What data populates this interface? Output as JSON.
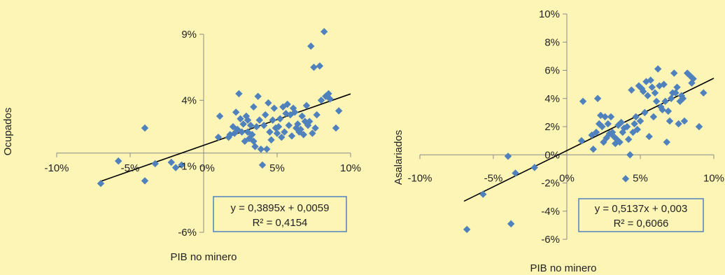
{
  "chart_data": [
    {
      "type": "scatter",
      "xlabel": "PIB no minero",
      "ylabel": "Ocupados",
      "xlim": [
        -0.1,
        0.1
      ],
      "ylim": [
        -0.06,
        0.09
      ],
      "x_ticks": [
        "-10%",
        "-5%",
        "0%",
        "5%",
        "10%"
      ],
      "y_ticks": [
        "-6%",
        "-1%",
        "4%",
        "9%"
      ],
      "y_tick_values": [
        -0.06,
        -0.01,
        0.04,
        0.09
      ],
      "marker_color": "#4f81bd",
      "trendline": {
        "slope": 0.3895,
        "intercept": 0.0059,
        "x_range": [
          -0.07,
          0.1
        ],
        "equation": "y = 0,3895x + 0,0059",
        "r2": "R² = 0,4154"
      },
      "points": [
        [
          -0.07,
          -0.023
        ],
        [
          -0.058,
          -0.006
        ],
        [
          -0.04,
          -0.021
        ],
        [
          -0.04,
          0.019
        ],
        [
          -0.033,
          -0.008
        ],
        [
          -0.022,
          -0.007
        ],
        [
          -0.019,
          -0.011
        ],
        [
          -0.015,
          -0.009
        ],
        [
          0.01,
          0.012
        ],
        [
          0.011,
          0.028
        ],
        [
          0.017,
          0.012
        ],
        [
          0.018,
          0.014
        ],
        [
          0.02,
          0.02
        ],
        [
          0.021,
          0.015
        ],
        [
          0.022,
          0.031
        ],
        [
          0.023,
          0.018
        ],
        [
          0.024,
          0.045
        ],
        [
          0.025,
          0.026
        ],
        [
          0.026,
          0.016
        ],
        [
          0.027,
          0.022
        ],
        [
          0.028,
          0.009
        ],
        [
          0.029,
          0.028
        ],
        [
          0.03,
          0.025
        ],
        [
          0.03,
          0.016
        ],
        [
          0.031,
          0.011
        ],
        [
          0.032,
          0.021
        ],
        [
          0.033,
          0.014
        ],
        [
          0.034,
          0.009
        ],
        [
          0.034,
          0.035
        ],
        [
          0.035,
          0.005
        ],
        [
          0.036,
          0.02
        ],
        [
          0.037,
          0.043
        ],
        [
          0.038,
          0.025
        ],
        [
          0.039,
          0.003
        ],
        [
          0.04,
          -0.009
        ],
        [
          0.041,
          0.021
        ],
        [
          0.042,
          0.029
        ],
        [
          0.043,
          0.003
        ],
        [
          0.044,
          0.038
        ],
        [
          0.045,
          0.016
        ],
        [
          0.046,
          0.01
        ],
        [
          0.047,
          0.025
        ],
        [
          0.048,
          0.034
        ],
        [
          0.049,
          0.019
        ],
        [
          0.05,
          0.015
        ],
        [
          0.051,
          0.02
        ],
        [
          0.052,
          0.026
        ],
        [
          0.053,
          0.012
        ],
        [
          0.054,
          0.035
        ],
        [
          0.055,
          0.016
        ],
        [
          0.056,
          0.03
        ],
        [
          0.057,
          0.037
        ],
        [
          0.058,
          0.021
        ],
        [
          0.059,
          0.029
        ],
        [
          0.06,
          0.013
        ],
        [
          0.061,
          0.034
        ],
        [
          0.062,
          0.031
        ],
        [
          0.063,
          0.019
        ],
        [
          0.064,
          0.022
        ],
        [
          0.065,
          0.016
        ],
        [
          0.066,
          0.018
        ],
        [
          0.067,
          0.028
        ],
        [
          0.068,
          0.014
        ],
        [
          0.069,
          0.024
        ],
        [
          0.07,
          0.036
        ],
        [
          0.071,
          0.021
        ],
        [
          0.072,
          0.024
        ],
        [
          0.073,
          0.081
        ],
        [
          0.074,
          0.015
        ],
        [
          0.075,
          0.065
        ],
        [
          0.076,
          0.019
        ],
        [
          0.077,
          0.029
        ],
        [
          0.079,
          0.066
        ],
        [
          0.08,
          0.04
        ],
        [
          0.082,
          0.092
        ],
        [
          0.083,
          0.043
        ],
        [
          0.085,
          0.045
        ],
        [
          0.086,
          0.041
        ],
        [
          0.09,
          0.019
        ],
        [
          0.092,
          0.032
        ]
      ]
    },
    {
      "type": "scatter",
      "xlabel": "PIB no minero",
      "ylabel": "Asalariados",
      "xlim": [
        -0.1,
        0.1
      ],
      "ylim": [
        -0.06,
        0.1
      ],
      "x_ticks": [
        "-10%",
        "-5%",
        "0%",
        "5%",
        "10%"
      ],
      "y_ticks": [
        "-6%",
        "-4%",
        "-2%",
        "0%",
        "2%",
        "4%",
        "6%",
        "8%",
        "10%"
      ],
      "y_tick_values": [
        -0.06,
        -0.04,
        -0.02,
        0.0,
        0.02,
        0.04,
        0.06,
        0.08,
        0.1
      ],
      "marker_color": "#4f81bd",
      "trendline": {
        "slope": 0.5137,
        "intercept": 0.003,
        "x_range": [
          -0.07,
          0.1
        ],
        "equation": "y = 0,5137x + 0,003",
        "r2": "R² = 0,6066"
      },
      "points": [
        [
          -0.068,
          -0.053
        ],
        [
          -0.057,
          -0.028
        ],
        [
          -0.04,
          -0.001
        ],
        [
          -0.038,
          -0.049
        ],
        [
          -0.035,
          -0.013
        ],
        [
          -0.022,
          -0.009
        ],
        [
          0.01,
          0.01
        ],
        [
          0.011,
          0.038
        ],
        [
          0.017,
          0.014
        ],
        [
          0.018,
          0.004
        ],
        [
          0.02,
          0.016
        ],
        [
          0.021,
          0.04
        ],
        [
          0.022,
          0.022
        ],
        [
          0.023,
          0.028
        ],
        [
          0.024,
          0.02
        ],
        [
          0.025,
          0.009
        ],
        [
          0.026,
          0.027
        ],
        [
          0.027,
          0.012
        ],
        [
          0.028,
          0.022
        ],
        [
          0.029,
          0.015
        ],
        [
          0.03,
          0.027
        ],
        [
          0.031,
          0.016
        ],
        [
          0.032,
          0.013
        ],
        [
          0.033,
          0.008
        ],
        [
          0.034,
          0.011
        ],
        [
          0.035,
          0.021
        ],
        [
          0.036,
          0.009
        ],
        [
          0.037,
          0.023
        ],
        [
          0.038,
          0.016
        ],
        [
          0.039,
          0.019
        ],
        [
          0.04,
          -0.017
        ],
        [
          0.041,
          0.02
        ],
        [
          0.042,
          0.011
        ],
        [
          0.043,
          0.0
        ],
        [
          0.044,
          0.046
        ],
        [
          0.045,
          0.016
        ],
        [
          0.046,
          0.022
        ],
        [
          0.047,
          0.027
        ],
        [
          0.048,
          0.018
        ],
        [
          0.049,
          0.049
        ],
        [
          0.05,
          0.024
        ],
        [
          0.051,
          0.047
        ],
        [
          0.052,
          0.045
        ],
        [
          0.053,
          0.03
        ],
        [
          0.054,
          0.052
        ],
        [
          0.055,
          0.042
        ],
        [
          0.056,
          0.013
        ],
        [
          0.057,
          0.053
        ],
        [
          0.058,
          0.048
        ],
        [
          0.059,
          0.027
        ],
        [
          0.06,
          0.044
        ],
        [
          0.061,
          0.038
        ],
        [
          0.062,
          0.061
        ],
        [
          0.063,
          0.049
        ],
        [
          0.064,
          0.034
        ],
        [
          0.065,
          0.032
        ],
        [
          0.066,
          0.05
        ],
        [
          0.067,
          0.038
        ],
        [
          0.068,
          0.009
        ],
        [
          0.069,
          0.031
        ],
        [
          0.07,
          0.024
        ],
        [
          0.071,
          0.04
        ],
        [
          0.072,
          0.044
        ],
        [
          0.073,
          0.058
        ],
        [
          0.074,
          0.044
        ],
        [
          0.075,
          0.048
        ],
        [
          0.076,
          0.022
        ],
        [
          0.077,
          0.038
        ],
        [
          0.078,
          0.042
        ],
        [
          0.079,
          0.04
        ],
        [
          0.08,
          0.024
        ],
        [
          0.082,
          0.058
        ],
        [
          0.084,
          0.056
        ],
        [
          0.085,
          0.051
        ],
        [
          0.086,
          0.054
        ],
        [
          0.09,
          0.02
        ],
        [
          0.093,
          0.044
        ]
      ]
    }
  ]
}
